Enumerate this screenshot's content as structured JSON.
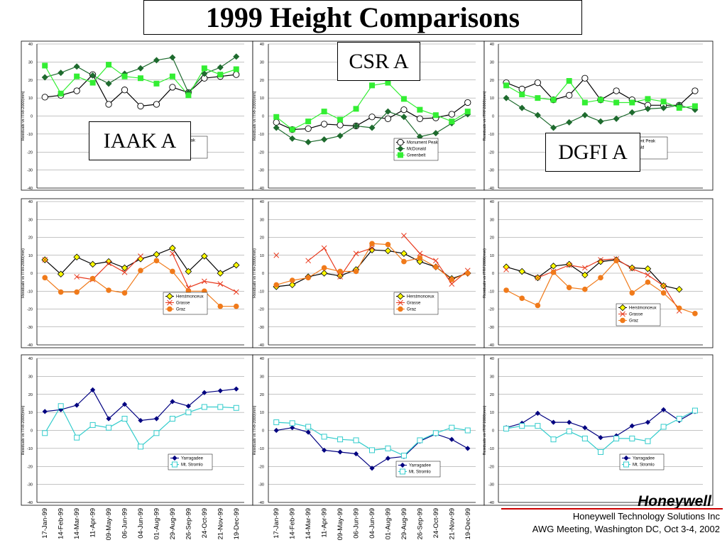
{
  "title": "1999 Height Comparisons",
  "overlay_labels": {
    "csr": "CSR A",
    "iaak": "IAAK A",
    "dgfi": "DGFI A"
  },
  "footer": {
    "logo": "Honeywell",
    "line1": "Honeywell Technology Solutions Inc",
    "line2": "AWG Meeting, Washington DC, Oct 3-4, 2002"
  },
  "colors": {
    "monument_peak": "#000000",
    "mcdonald": "#1e6b2e",
    "greenbelt": "#33ee33",
    "herstmonceux": "#000000",
    "grasse": "#e83a1e",
    "graz": "#f07a1a",
    "yarragadee": "#000080",
    "mt_stromlo": "#33cccc"
  },
  "chart_data": [
    {
      "type": "line",
      "panel": "iaak-tasmania",
      "ylabel": "Residuals vs ITRF2000(mm)",
      "ylim": [
        -40,
        40
      ],
      "yticks": [
        "40",
        "30",
        "20",
        "10",
        "0",
        "-10",
        "-20",
        "-30",
        "-40"
      ],
      "categories": [
        "17-Jan-99",
        "14-Feb-99",
        "14-Mar-99",
        "11-Apr-99",
        "09-May-99",
        "06-Jun-99",
        "04-Jun-99",
        "01-Aug-99",
        "29-Aug-99",
        "26-Sep-99",
        "24-Oct-99",
        "21-Nov-99",
        "19-Dec-99"
      ],
      "legend_lines": [
        "nent Peak",
        "ald",
        "elt"
      ],
      "series": [
        {
          "name": "Monument Peak",
          "marker": "circle",
          "color_key": "monument_peak",
          "values": [
            10.5,
            11.5,
            14,
            23,
            6.5,
            14.5,
            5.5,
            6.5,
            16,
            13,
            21,
            22,
            23
          ]
        },
        {
          "name": "McDonald",
          "marker": "diamond",
          "color_key": "mcdonald",
          "values": [
            21.5,
            24,
            27.5,
            22.5,
            18,
            23.5,
            26.5,
            31,
            32.5,
            13,
            23.5,
            27,
            33
          ]
        },
        {
          "name": "Greenbelt",
          "marker": "square",
          "color_key": "greenbelt",
          "values": [
            28,
            12.5,
            22,
            18.5,
            28.5,
            22,
            21,
            18,
            22,
            11.5,
            26.5,
            23,
            26
          ]
        }
      ]
    },
    {
      "type": "line",
      "panel": "csr-tasmania",
      "ylabel": "Residuals vs ITRF2000(mm)",
      "ylim": [
        -40,
        40
      ],
      "yticks": [
        "40",
        "30",
        "20",
        "10",
        "0",
        "-10",
        "-20",
        "-30",
        "-40"
      ],
      "categories": [
        "17-Jan-99",
        "14-Feb-99",
        "14-Mar-99",
        "11-Apr-99",
        "09-May-99",
        "06-Jun-99",
        "04-Jun-99",
        "01-Aug-99",
        "29-Aug-99",
        "26-Sep-99",
        "24-Oct-99",
        "21-Nov-99",
        "19-Dec-99"
      ],
      "legend_lines": [
        "Monument Peak",
        "McDonald",
        "Greenbelt"
      ],
      "series": [
        {
          "name": "Monument Peak",
          "marker": "circle",
          "color_key": "monument_peak",
          "values": [
            -3.5,
            -7.5,
            -7,
            -4.5,
            -5,
            -5.5,
            -0.5,
            -1.5,
            3.5,
            -1.5,
            -1,
            1,
            7.5
          ]
        },
        {
          "name": "McDonald",
          "marker": "diamond",
          "color_key": "mcdonald",
          "values": [
            -6.5,
            -12.5,
            -14.5,
            -13,
            -11,
            -5.5,
            -6.5,
            2.5,
            -0.5,
            -11.5,
            -9.5,
            -4,
            1
          ]
        },
        {
          "name": "Greenbelt",
          "marker": "square",
          "color_key": "greenbelt",
          "values": [
            -0.5,
            -7.5,
            -3,
            2.5,
            -2,
            4,
            17,
            18.5,
            9.5,
            3.5,
            0.5,
            -3,
            2.5
          ]
        }
      ]
    },
    {
      "type": "line",
      "panel": "dgfi-tasmania",
      "ylabel": "Residuals vs ITRF2000(mm)",
      "ylim": [
        -40,
        40
      ],
      "yticks": [
        "40",
        "30",
        "20",
        "10",
        "0",
        "-10",
        "-20",
        "-30",
        "-40"
      ],
      "categories": [
        "17-Jan-99",
        "14-Feb-99",
        "14-Mar-99",
        "11-Apr-99",
        "09-May-99",
        "06-Jun-99",
        "04-Jun-99",
        "01-Aug-99",
        "29-Aug-99",
        "26-Sep-99",
        "24-Oct-99",
        "21-Nov-99",
        "19-Dec-99"
      ],
      "legend_lines": [
        "nent Peak",
        "nald",
        "lt"
      ],
      "series": [
        {
          "name": "Monument Peak",
          "marker": "circle",
          "color_key": "monument_peak",
          "values": [
            18.5,
            15,
            18.5,
            9,
            11.5,
            21,
            9,
            14,
            9,
            6,
            6,
            6,
            14
          ]
        },
        {
          "name": "McDonald",
          "marker": "diamond",
          "color_key": "mcdonald",
          "values": [
            10,
            4.5,
            0.5,
            -6.5,
            -3.5,
            0.5,
            -3,
            -1.5,
            2,
            4,
            4.5,
            6,
            3.5
          ]
        },
        {
          "name": "Greenbelt",
          "marker": "square",
          "color_key": "greenbelt",
          "values": [
            17,
            12,
            10,
            9,
            19.5,
            7.5,
            9,
            7.5,
            7.5,
            9.5,
            8,
            4.5,
            5.5
          ]
        }
      ]
    },
    {
      "type": "line",
      "panel": "iaak-europe",
      "ylabel": "Residuals vs ITRF2000(mm)",
      "ylim": [
        -40,
        40
      ],
      "yticks": [
        "40",
        "30",
        "20",
        "10",
        "0",
        "-10",
        "-20",
        "-30",
        "-40"
      ],
      "categories": [
        "17-Jan-99",
        "14-Feb-99",
        "14-Mar-99",
        "11-Apr-99",
        "09-May-99",
        "06-Jun-99",
        "04-Jun-99",
        "01-Aug-99",
        "29-Aug-99",
        "26-Sep-99",
        "24-Oct-99",
        "21-Nov-99",
        "19-Dec-99"
      ],
      "legend_lines": [
        "Herstmonceux",
        "Grasse",
        "Graz"
      ],
      "series": [
        {
          "name": "Herstmonceux",
          "marker": "yellowdiamond",
          "color_key": "herstmonceux",
          "values": [
            7.5,
            -0.5,
            9,
            5,
            6.5,
            3,
            8,
            10.5,
            14,
            1,
            9.5,
            0,
            4.5
          ]
        },
        {
          "name": "Grasse",
          "marker": "x",
          "color_key": "grasse",
          "values": [
            7.5,
            null,
            -2,
            -3.5,
            5.5,
            0.5,
            9.5,
            null,
            11,
            -8,
            -4.5,
            -6,
            -10.5
          ]
        },
        {
          "name": "Graz",
          "marker": "dot",
          "color_key": "graz",
          "values": [
            -2.5,
            -10.5,
            -10.5,
            -3,
            -9.5,
            -11,
            1.5,
            7,
            1,
            -10,
            -10,
            -18.5,
            -18.5
          ]
        }
      ]
    },
    {
      "type": "line",
      "panel": "csr-europe",
      "ylabel": "Residuals vs ITRF2000(mm)",
      "ylim": [
        -40,
        40
      ],
      "yticks": [
        "40",
        "30",
        "20",
        "10",
        "0",
        "-10",
        "-20",
        "-30",
        "-40"
      ],
      "categories": [
        "17-Jan-99",
        "14-Feb-99",
        "14-Mar-99",
        "11-Apr-99",
        "09-May-99",
        "06-Jun-99",
        "04-Jun-99",
        "01-Aug-99",
        "29-Aug-99",
        "26-Sep-99",
        "24-Oct-99",
        "21-Nov-99",
        "19-Dec-99"
      ],
      "legend_lines": [
        "Herstmonceux",
        "Grasse",
        "Graz"
      ],
      "series": [
        {
          "name": "Herstmonceux",
          "marker": "yellowdiamond",
          "color_key": "herstmonceux",
          "values": [
            -7.5,
            -6.5,
            -2,
            0,
            -1.5,
            2,
            13,
            12.5,
            11,
            6.5,
            3.5,
            -3,
            0
          ]
        },
        {
          "name": "Grasse",
          "marker": "x",
          "color_key": "grasse",
          "values": [
            10,
            null,
            7,
            14,
            -2,
            11,
            14,
            null,
            21,
            11,
            7,
            -6,
            1.5
          ]
        },
        {
          "name": "Graz",
          "marker": "dot",
          "color_key": "graz",
          "values": [
            -6.5,
            -4,
            -2.5,
            3,
            1,
            1,
            16.5,
            16,
            6.5,
            8.5,
            3.5,
            -3.5,
            0
          ]
        }
      ]
    },
    {
      "type": "line",
      "panel": "dgfi-europe",
      "ylabel": "Residuals vs ITRF2000(mm)",
      "ylim": [
        -40,
        40
      ],
      "yticks": [
        "40",
        "30",
        "20",
        "10",
        "0",
        "-10",
        "-20",
        "-30",
        "-40"
      ],
      "categories": [
        "17-Jan-99",
        "14-Feb-99",
        "14-Mar-99",
        "11-Apr-99",
        "09-May-99",
        "06-Jun-99",
        "04-Jun-99",
        "01-Aug-99",
        "29-Aug-99",
        "26-Sep-99",
        "24-Oct-99",
        "21-Nov-99",
        "19-Dec-99"
      ],
      "legend_lines": [
        "Herstmonceux",
        "Grasse",
        "Graz"
      ],
      "series": [
        {
          "name": "Herstmonceux",
          "marker": "yellowdiamond",
          "color_key": "herstmonceux",
          "values": [
            3.5,
            1,
            -2.5,
            4,
            5,
            -1,
            6.5,
            7.5,
            3,
            2.5,
            -7,
            -9,
            null
          ]
        },
        {
          "name": "Grasse",
          "marker": "x",
          "color_key": "grasse",
          "values": [
            2,
            null,
            -2.5,
            1,
            4.5,
            3,
            7.5,
            8,
            2.5,
            -1,
            -7,
            -21,
            null
          ]
        },
        {
          "name": "Graz",
          "marker": "dot",
          "color_key": "graz",
          "values": [
            -9.5,
            -14,
            -18,
            0.5,
            -8,
            -9,
            -2.5,
            7,
            -11,
            -5,
            -11,
            -19.5,
            -22.5
          ]
        }
      ]
    },
    {
      "type": "line",
      "panel": "iaak-australia",
      "ylabel": "Residuals vs ITRF2000(mm)",
      "ylim": [
        -40,
        40
      ],
      "yticks": [
        "40",
        "30",
        "20",
        "10",
        "0",
        "-10",
        "-20",
        "-30",
        "-40"
      ],
      "categories": [
        "17-Jan-99",
        "14-Feb-99",
        "14-Mar-99",
        "11-Apr-99",
        "09-May-99",
        "06-Jun-99",
        "04-Jun-99",
        "01-Aug-99",
        "29-Aug-99",
        "26-Sep-99",
        "24-Oct-99",
        "21-Nov-99",
        "19-Dec-99"
      ],
      "legend_lines": [
        "Yarragadee",
        "Mt. Stromlo"
      ],
      "series": [
        {
          "name": "Yarragadee",
          "marker": "navydiamond",
          "color_key": "yarragadee",
          "values": [
            10.5,
            11.5,
            14,
            22.5,
            6.5,
            14.5,
            5.5,
            6.5,
            16,
            13.5,
            21,
            22,
            23
          ]
        },
        {
          "name": "Mt. Stromlo",
          "marker": "square-open",
          "color_key": "mt_stromlo",
          "values": [
            -1.5,
            13.5,
            -4,
            3,
            1.5,
            6.5,
            -9,
            -1.5,
            6.5,
            10,
            13,
            13,
            12.5
          ]
        }
      ]
    },
    {
      "type": "line",
      "panel": "csr-australia",
      "ylabel": "Residuals vs ITRF2000(mm)",
      "ylim": [
        -40,
        40
      ],
      "yticks": [
        "40",
        "30",
        "20",
        "10",
        "0",
        "-10",
        "-20",
        "-30",
        "-40"
      ],
      "categories": [
        "17-Jan-99",
        "14-Feb-99",
        "14-Mar-99",
        "11-Apr-99",
        "09-May-99",
        "06-Jun-99",
        "04-Jun-99",
        "01-Aug-99",
        "29-Aug-99",
        "26-Sep-99",
        "24-Oct-99",
        "21-Nov-99",
        "19-Dec-99"
      ],
      "legend_lines": [
        "Yarragadee",
        "Mt. Stromlo"
      ],
      "series": [
        {
          "name": "Yarragadee",
          "marker": "navydiamond",
          "color_key": "yarragadee",
          "values": [
            0,
            1.5,
            -1,
            -11,
            -12,
            -13,
            -21,
            -15.5,
            -14.5,
            -6,
            -2,
            -5,
            -10
          ]
        },
        {
          "name": "Mt. Stromlo",
          "marker": "square-open",
          "color_key": "mt_stromlo",
          "values": [
            4.5,
            4,
            2,
            -3.5,
            -5,
            -5.5,
            -11,
            -10,
            -14,
            -5.5,
            -1.5,
            1.5,
            0
          ]
        }
      ]
    },
    {
      "type": "line",
      "panel": "dgfi-australia",
      "ylabel": "Residuals vs ITRF2000(mm)",
      "ylim": [
        -40,
        40
      ],
      "yticks": [
        "40",
        "30",
        "20",
        "10",
        "0",
        "-10",
        "-20",
        "-30",
        "-40"
      ],
      "categories": [
        "17-Jan-99",
        "14-Feb-99",
        "14-Mar-99",
        "11-Apr-99",
        "09-May-99",
        "06-Jun-99",
        "04-Jun-99",
        "01-Aug-99",
        "29-Aug-99",
        "26-Sep-99",
        "24-Oct-99",
        "21-Nov-99",
        "19-Dec-99"
      ],
      "legend_lines": [
        "Yarragadee",
        "Mt. Stromlo"
      ],
      "series": [
        {
          "name": "Yarragadee",
          "marker": "navydiamond",
          "color_key": "yarragadee",
          "values": [
            1.5,
            4,
            9.5,
            4.5,
            4.5,
            1.5,
            -4,
            -3,
            2.5,
            4.5,
            11.5,
            5.5,
            10.5
          ]
        },
        {
          "name": "Mt. Stromlo",
          "marker": "square-open",
          "color_key": "mt_stromlo",
          "values": [
            1,
            2.5,
            2.5,
            -5,
            -0.5,
            -4.5,
            -12,
            -4.5,
            -4.5,
            -6,
            2,
            6.5,
            11
          ]
        }
      ]
    }
  ]
}
